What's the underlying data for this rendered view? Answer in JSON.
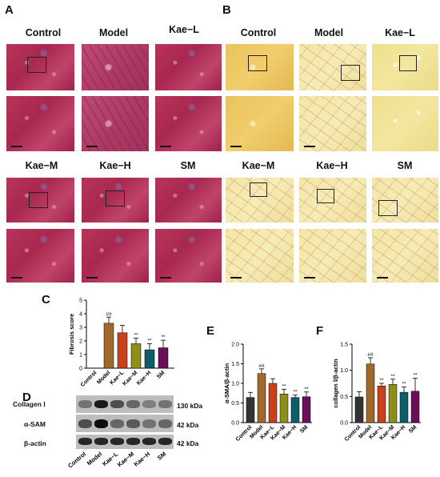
{
  "panels": {
    "A": "A",
    "B": "B",
    "C": "C",
    "D": "D",
    "E": "E",
    "F": "F"
  },
  "histology_groups_row1": [
    "Control",
    "Model",
    "Kae−L"
  ],
  "histology_groups_row2": [
    "Kae−M",
    "Kae−H",
    "SM"
  ],
  "colors": {
    "control": "#333333",
    "model": "#a0692b",
    "kae_l": "#c9411a",
    "kae_m": "#8d8f1a",
    "kae_h": "#0e5d6b",
    "sm": "#6b0f58",
    "masson_stain": "#b8345a",
    "sirius_stain": "#efe08c"
  },
  "chart_data": [
    {
      "type": "bar",
      "panel": "C",
      "ylabel": "Fibrosis score",
      "categories": [
        "Control",
        "Model",
        "Kae−L",
        "Kae−M",
        "Kae−H",
        "SM"
      ],
      "values": [
        0,
        3.3,
        2.6,
        1.8,
        1.35,
        1.5
      ],
      "errors": [
        0,
        0.45,
        0.55,
        0.4,
        0.45,
        0.55
      ],
      "sig_labels": [
        "",
        "##",
        "",
        "**",
        "**",
        "**"
      ],
      "ylim": [
        0,
        5
      ],
      "yticks": [
        "0",
        "1",
        "2",
        "3",
        "4",
        "5"
      ]
    },
    {
      "type": "bar",
      "panel": "E",
      "ylabel": "α-SMA/β-actin",
      "categories": [
        "Control",
        "Model",
        "Kae−L",
        "Kae−M",
        "Kae−H",
        "SM"
      ],
      "values": [
        0.64,
        1.25,
        1.0,
        0.73,
        0.64,
        0.66
      ],
      "errors": [
        0.13,
        0.12,
        0.12,
        0.12,
        0.06,
        0.12
      ],
      "sig_labels": [
        "",
        "##",
        "",
        "**",
        "**",
        "**"
      ],
      "ylim": [
        0,
        2.0
      ],
      "yticks": [
        "0.0",
        "0.5",
        "1.0",
        "1.5",
        "2.0"
      ]
    },
    {
      "type": "bar",
      "panel": "F",
      "ylabel": "collagen Ⅰ/β-actin",
      "categories": [
        "Control",
        "Model",
        "Kae−L",
        "Kae−M",
        "Kae−H",
        "SM"
      ],
      "values": [
        0.49,
        1.12,
        0.7,
        0.73,
        0.58,
        0.6
      ],
      "errors": [
        0.1,
        0.12,
        0.05,
        0.1,
        0.1,
        0.25
      ],
      "sig_labels": [
        "",
        "##",
        "**",
        "**",
        "**",
        "**"
      ],
      "ylim": [
        0,
        1.5
      ],
      "yticks": [
        "0.0",
        "0.5",
        "1.0",
        "1.5"
      ]
    }
  ],
  "western_blot": {
    "row_labels": [
      "Collagen Ⅰ",
      "α-SAM",
      "β-actin"
    ],
    "kda_labels": [
      "130 kDa",
      "42 kDa",
      "42 kDa"
    ],
    "lanes": [
      "Control",
      "Model",
      "Kae−L",
      "Kae−M",
      "Kae−H",
      "SM"
    ],
    "band_intensity": [
      [
        0.55,
        0.9,
        0.7,
        0.6,
        0.5,
        0.55
      ],
      [
        0.7,
        0.95,
        0.6,
        0.65,
        0.55,
        0.6
      ],
      [
        0.85,
        0.85,
        0.85,
        0.85,
        0.85,
        0.85
      ]
    ]
  }
}
